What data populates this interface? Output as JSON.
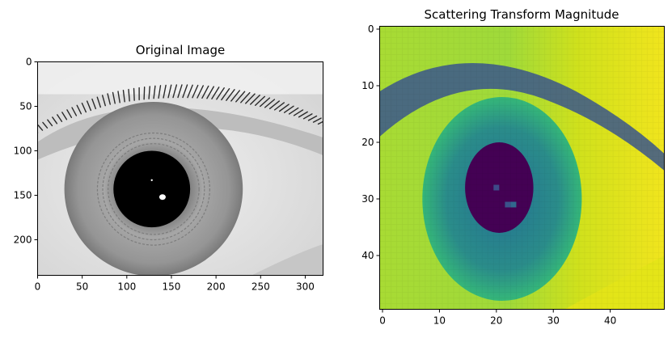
{
  "chart_data": [
    {
      "type": "heatmap",
      "title": "Original Image",
      "colormap": "gray",
      "xlim": [
        0,
        320
      ],
      "ylim": [
        240,
        0
      ],
      "xticks": [
        0,
        50,
        100,
        150,
        200,
        250,
        300
      ],
      "yticks": [
        0,
        50,
        100,
        150,
        200
      ],
      "features": {
        "eye_white_color": "#e2e2e2",
        "iris_color": "#9a9a9a",
        "iris_center": [
          130,
          143
        ],
        "iris_radius": [
          100,
          98
        ],
        "pupil_color": "#000000",
        "pupil_center": [
          128,
          143
        ],
        "pupil_radius": 43,
        "highlight_center": [
          140,
          152
        ],
        "eyelash_color": "#2a2a2a"
      }
    },
    {
      "type": "heatmap",
      "title": "Scattering Transform Magnitude",
      "colormap": "viridis",
      "xlim": [
        -0.5,
        49.5
      ],
      "ylim": [
        49.5,
        -0.5
      ],
      "xticks": [
        0,
        10,
        20,
        30,
        40
      ],
      "yticks": [
        0,
        10,
        20,
        30,
        40
      ],
      "features": {
        "background_color": "#c7e020",
        "right_bright_color": "#e3e418",
        "iris_color": "#2e8f8b",
        "iris_center": [
          21,
          30
        ],
        "iris_radius": [
          14,
          18
        ],
        "lid_band_color": "#39568c",
        "pupil_color": "#440154",
        "pupil_center": [
          20.5,
          28
        ],
        "pupil_radius": [
          6,
          8
        ]
      }
    }
  ]
}
